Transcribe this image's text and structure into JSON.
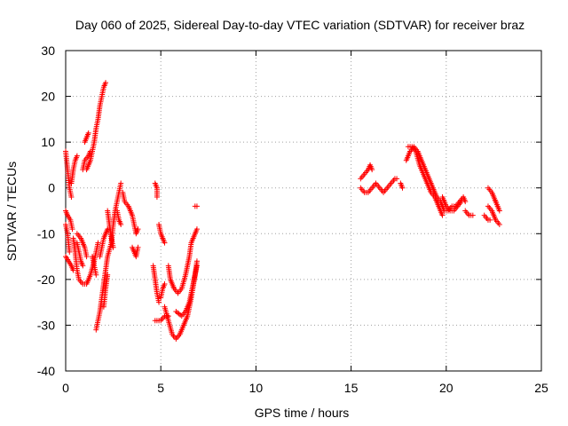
{
  "chart_data": {
    "type": "scatter",
    "title": "Day 060 of 2025, Sidereal Day-to-day VTEC variation (SDTVAR) for receiver braz",
    "xlabel": "GPS time / hours",
    "ylabel": "SDTVAR / TECUs",
    "xlim": [
      0,
      25
    ],
    "ylim": [
      -40,
      30
    ],
    "xticks": [
      "0",
      "5",
      "10",
      "15",
      "20",
      "25"
    ],
    "yticks": [
      "-40",
      "-30",
      "-20",
      "-10",
      "0",
      "10",
      "20",
      "30"
    ],
    "grid": true,
    "marker": "plus",
    "series": [
      {
        "color": "#ff0000",
        "tracks": [
          [
            [
              0.0,
              8
            ],
            [
              0.1,
              4
            ],
            [
              0.2,
              0
            ],
            [
              0.3,
              -2
            ]
          ],
          [
            [
              0.0,
              -5
            ],
            [
              0.1,
              -6
            ],
            [
              0.25,
              -7
            ],
            [
              0.35,
              -9
            ]
          ],
          [
            [
              0.0,
              -15
            ],
            [
              0.15,
              -16
            ],
            [
              0.3,
              -17
            ],
            [
              0.4,
              -18
            ]
          ],
          [
            [
              0.0,
              -8
            ],
            [
              0.1,
              -10
            ],
            [
              0.15,
              -12
            ],
            [
              0.2,
              -14
            ]
          ],
          [
            [
              0.3,
              1
            ],
            [
              0.4,
              4
            ],
            [
              0.5,
              6
            ],
            [
              0.6,
              7
            ]
          ],
          [
            [
              0.4,
              -11
            ],
            [
              0.5,
              -14
            ],
            [
              0.6,
              -18
            ],
            [
              0.7,
              -20
            ],
            [
              0.9,
              -21
            ],
            [
              1.1,
              -21
            ],
            [
              1.3,
              -19
            ],
            [
              1.5,
              -16
            ],
            [
              1.6,
              -14
            ],
            [
              1.7,
              -12
            ]
          ],
          [
            [
              0.6,
              -12
            ],
            [
              0.7,
              -14
            ],
            [
              0.8,
              -16
            ],
            [
              0.9,
              -17
            ]
          ],
          [
            [
              0.6,
              -10
            ],
            [
              0.8,
              -11
            ],
            [
              1.0,
              -13
            ],
            [
              1.1,
              -15
            ]
          ],
          [
            [
              0.9,
              4
            ],
            [
              1.0,
              6
            ],
            [
              1.2,
              7
            ],
            [
              1.3,
              8
            ]
          ],
          [
            [
              1.1,
              4
            ],
            [
              1.3,
              6
            ],
            [
              1.4,
              8
            ],
            [
              1.5,
              10
            ],
            [
              1.6,
              13
            ],
            [
              1.7,
              15
            ],
            [
              1.8,
              18
            ],
            [
              1.9,
              20
            ],
            [
              2.0,
              22
            ],
            [
              2.1,
              23
            ]
          ],
          [
            [
              1.0,
              10
            ],
            [
              1.1,
              11
            ],
            [
              1.2,
              12
            ]
          ],
          [
            [
              1.4,
              -15
            ],
            [
              1.5,
              -17
            ],
            [
              1.6,
              -19
            ]
          ],
          [
            [
              1.6,
              -31
            ],
            [
              1.7,
              -29
            ],
            [
              1.8,
              -27
            ],
            [
              1.9,
              -24
            ],
            [
              2.0,
              -21
            ],
            [
              2.1,
              -18
            ],
            [
              2.2,
              -15
            ],
            [
              2.4,
              -12
            ],
            [
              2.5,
              -8
            ],
            [
              2.6,
              -5
            ],
            [
              2.7,
              -3
            ],
            [
              2.8,
              -1
            ],
            [
              2.9,
              1
            ]
          ],
          [
            [
              1.8,
              -15
            ],
            [
              1.9,
              -13
            ],
            [
              2.0,
              -11
            ],
            [
              2.1,
              -10
            ],
            [
              2.2,
              -9
            ]
          ],
          [
            [
              2.0,
              -26
            ],
            [
              2.1,
              -22
            ],
            [
              2.2,
              -19
            ]
          ],
          [
            [
              2.2,
              -5
            ],
            [
              2.3,
              -8
            ],
            [
              2.4,
              -11
            ],
            [
              2.5,
              -13
            ]
          ],
          [
            [
              2.7,
              -5
            ],
            [
              2.8,
              -7
            ],
            [
              2.9,
              -8
            ]
          ],
          [
            [
              3.0,
              -1
            ],
            [
              3.1,
              -3
            ],
            [
              3.3,
              -4
            ],
            [
              3.4,
              -5
            ],
            [
              3.5,
              -6
            ],
            [
              3.6,
              -8
            ],
            [
              3.7,
              -10
            ],
            [
              3.8,
              -9
            ]
          ],
          [
            [
              3.5,
              -13
            ],
            [
              3.6,
              -14
            ],
            [
              3.7,
              -15
            ],
            [
              3.8,
              -13
            ]
          ],
          [
            [
              4.6,
              -17
            ],
            [
              4.7,
              -20
            ],
            [
              4.8,
              -23
            ],
            [
              4.9,
              -25
            ]
          ],
          [
            [
              4.7,
              1
            ],
            [
              4.8,
              0
            ],
            [
              4.8,
              -2
            ]
          ],
          [
            [
              4.7,
              -29
            ],
            [
              5.0,
              -29
            ],
            [
              5.2,
              -28
            ],
            [
              5.4,
              -28
            ]
          ],
          [
            [
              4.9,
              -8
            ],
            [
              5.0,
              -10
            ],
            [
              5.1,
              -11
            ],
            [
              5.2,
              -12
            ]
          ],
          [
            [
              5.0,
              -24
            ],
            [
              5.1,
              -22
            ],
            [
              5.2,
              -21
            ]
          ],
          [
            [
              5.2,
              -26
            ],
            [
              5.4,
              -29
            ],
            [
              5.6,
              -32
            ],
            [
              5.8,
              -33
            ],
            [
              6.0,
              -32
            ],
            [
              6.2,
              -30
            ],
            [
              6.4,
              -28
            ],
            [
              6.6,
              -24
            ],
            [
              6.8,
              -19
            ],
            [
              6.9,
              -16
            ]
          ],
          [
            [
              5.4,
              -17
            ],
            [
              5.5,
              -20
            ],
            [
              5.7,
              -22
            ],
            [
              5.9,
              -23
            ],
            [
              6.1,
              -22
            ],
            [
              6.3,
              -19
            ],
            [
              6.5,
              -15
            ],
            [
              6.6,
              -12
            ],
            [
              6.8,
              -10
            ],
            [
              6.9,
              -9
            ]
          ],
          [
            [
              5.8,
              -27
            ],
            [
              6.1,
              -28
            ],
            [
              6.3,
              -27
            ],
            [
              6.5,
              -25
            ],
            [
              6.7,
              -21
            ],
            [
              6.9,
              -17
            ]
          ],
          [
            [
              6.8,
              -4
            ],
            [
              6.9,
              -4
            ]
          ],
          [
            [
              15.5,
              2
            ],
            [
              15.7,
              3
            ],
            [
              15.9,
              4
            ],
            [
              16.0,
              5
            ],
            [
              16.1,
              4
            ]
          ],
          [
            [
              15.5,
              0
            ],
            [
              15.7,
              -1
            ],
            [
              15.9,
              -1
            ],
            [
              16.1,
              0
            ],
            [
              16.3,
              1
            ],
            [
              16.5,
              0
            ],
            [
              16.7,
              -1
            ],
            [
              16.9,
              0
            ],
            [
              17.1,
              1
            ],
            [
              17.3,
              2
            ],
            [
              17.4,
              2
            ]
          ],
          [
            [
              17.6,
              1
            ],
            [
              17.7,
              0
            ]
          ],
          [
            [
              17.9,
              6
            ],
            [
              18.1,
              8
            ],
            [
              18.3,
              9
            ],
            [
              18.5,
              8
            ],
            [
              18.7,
              6
            ],
            [
              18.9,
              4
            ],
            [
              19.1,
              2
            ],
            [
              19.3,
              0
            ],
            [
              19.5,
              -2
            ],
            [
              19.7,
              -3
            ],
            [
              19.9,
              -5
            ],
            [
              20.1,
              -5
            ],
            [
              20.3,
              -4
            ],
            [
              20.5,
              -4
            ],
            [
              20.7,
              -3
            ],
            [
              20.9,
              -2
            ],
            [
              21.0,
              -3
            ]
          ],
          [
            [
              18.0,
              9
            ],
            [
              18.2,
              9
            ],
            [
              18.4,
              8
            ],
            [
              18.6,
              5
            ],
            [
              18.8,
              3
            ],
            [
              19.0,
              1
            ],
            [
              19.2,
              -1
            ],
            [
              19.4,
              -2
            ],
            [
              19.6,
              -4
            ],
            [
              19.8,
              -6
            ]
          ],
          [
            [
              19.8,
              -2
            ],
            [
              20.0,
              -4
            ],
            [
              20.2,
              -5
            ],
            [
              20.4,
              -5
            ],
            [
              20.6,
              -4
            ],
            [
              20.8,
              -3
            ]
          ],
          [
            [
              21.0,
              -5
            ],
            [
              21.2,
              -6
            ],
            [
              21.4,
              -6
            ]
          ],
          [
            [
              22.0,
              -6
            ],
            [
              22.2,
              -7
            ],
            [
              22.3,
              -7
            ]
          ],
          [
            [
              22.2,
              0
            ],
            [
              22.4,
              -1
            ],
            [
              22.5,
              -2
            ],
            [
              22.6,
              -3
            ]
          ],
          [
            [
              22.2,
              -4
            ],
            [
              22.4,
              -5
            ],
            [
              22.6,
              -7
            ],
            [
              22.8,
              -8
            ]
          ],
          [
            [
              22.6,
              -3
            ],
            [
              22.7,
              -4
            ],
            [
              22.8,
              -5
            ]
          ]
        ]
      }
    ]
  }
}
